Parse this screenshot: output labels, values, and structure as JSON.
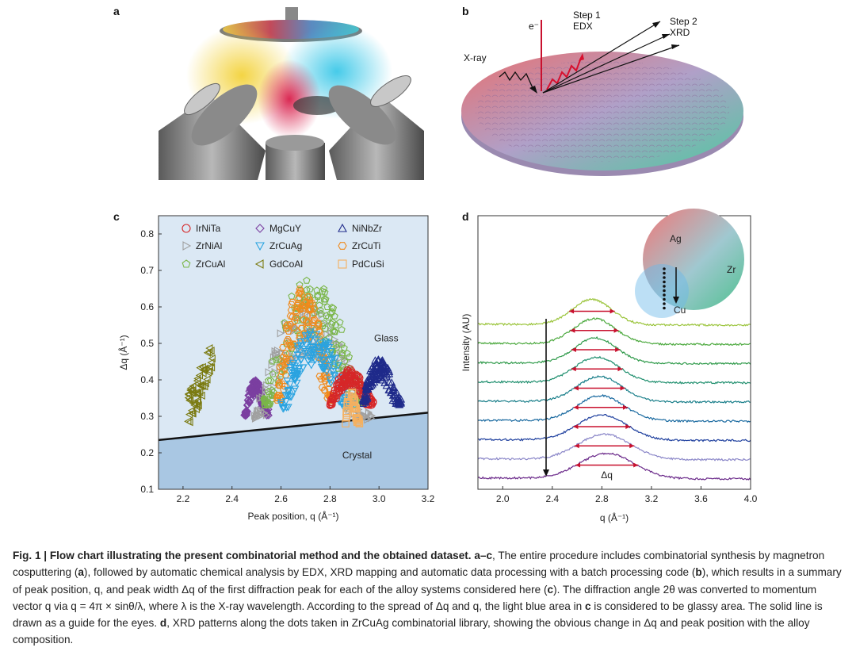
{
  "panels": {
    "a": "a",
    "b": "b",
    "c": "c",
    "d": "d"
  },
  "panel_b": {
    "electron": "e⁻",
    "step1_line1": "Step 1",
    "step1_line2": "EDX",
    "step2_line1": "Step 2",
    "step2_line2": "XRD",
    "xray": "X-ray"
  },
  "colors": {
    "IrNiTa": "#d62728",
    "MgCuY": "#7b3fa0",
    "NiNbZr": "#1f2a8a",
    "ZrNiAl": "#a0a0a0",
    "ZrCuAg": "#2aa3e0",
    "ZrCuTi": "#f08a1c",
    "ZrCuAl": "#7ab648",
    "GdCoAl": "#7a7a10",
    "PdCuSi": "#f5b060",
    "glass_bg": "#dbe8f4",
    "crystal_bg": "#a9c7e3"
  },
  "chart_data": [
    {
      "type": "scatter",
      "title": "",
      "xlabel": "Peak position, q (Å⁻¹)",
      "ylabel": "Δq (Å⁻¹)",
      "xlim": [
        2.1,
        3.2
      ],
      "ylim": [
        0.1,
        0.85
      ],
      "xticks": [
        "2.2",
        "2.4",
        "2.6",
        "2.8",
        "3.0",
        "3.2"
      ],
      "yticks": [
        "0.1",
        "0.2",
        "0.3",
        "0.4",
        "0.5",
        "0.6",
        "0.7",
        "0.8"
      ],
      "region_labels": {
        "glass": "Glass",
        "crystal": "Crystal"
      },
      "boundary_line": {
        "x": [
          2.1,
          3.2
        ],
        "y": [
          0.235,
          0.31
        ]
      },
      "legend": [
        {
          "name": "IrNiTa",
          "marker": "circle"
        },
        {
          "name": "MgCuY",
          "marker": "diamond"
        },
        {
          "name": "NiNbZr",
          "marker": "triangle-up"
        },
        {
          "name": "ZrNiAl",
          "marker": "triangle-right"
        },
        {
          "name": "ZrCuAg",
          "marker": "triangle-down"
        },
        {
          "name": "ZrCuTi",
          "marker": "hexagon"
        },
        {
          "name": "ZrCuAl",
          "marker": "pentagon"
        },
        {
          "name": "GdCoAl",
          "marker": "triangle-left"
        },
        {
          "name": "PdCuSi",
          "marker": "square"
        }
      ],
      "series_regions": [
        {
          "name": "GdCoAl",
          "x": [
            2.22,
            2.32
          ],
          "y_top": [
            0.36,
            0.51
          ],
          "y_bottom": [
            0.25,
            0.43
          ]
        },
        {
          "name": "MgCuY",
          "x": [
            2.45,
            2.55
          ],
          "peak": 0.4,
          "base": 0.3
        },
        {
          "name": "ZrNiAl",
          "x": [
            2.49,
            2.97
          ],
          "peak": 0.61,
          "base": 0.29
        },
        {
          "name": "ZrCuAl",
          "x": [
            2.53,
            2.95
          ],
          "peak": 0.68,
          "base": 0.33
        },
        {
          "name": "ZrCuTi",
          "x": [
            2.58,
            2.82
          ],
          "peak": 0.66,
          "base": 0.34
        },
        {
          "name": "ZrCuAg",
          "x": [
            2.6,
            2.9
          ],
          "peak": 0.54,
          "base": 0.32
        },
        {
          "name": "IrNiTa",
          "x": [
            2.8,
            2.98
          ],
          "peak": 0.43,
          "base": 0.33
        },
        {
          "name": "NiNbZr",
          "x": [
            2.93,
            3.09
          ],
          "peak": 0.46,
          "base": 0.33
        },
        {
          "name": "PdCuSi",
          "x": [
            2.86,
            2.92
          ],
          "peak": 0.37,
          "base": 0.28
        }
      ]
    },
    {
      "type": "line",
      "title": "",
      "xlabel": "q (Å⁻¹)",
      "ylabel": "Intensity (AU)",
      "xlim": [
        1.8,
        4.0
      ],
      "xticks": [
        "2.0",
        "2.4",
        "2.8",
        "3.2",
        "3.6",
        "4.0"
      ],
      "delta_q_label": "Δq",
      "inset": {
        "labels": [
          "Ag",
          "Zr",
          "Cu"
        ]
      },
      "series": [
        {
          "name": "pattern-1",
          "peak_q": 2.72,
          "width": 0.16,
          "color": "#9ac43a"
        },
        {
          "name": "pattern-2",
          "peak_q": 2.74,
          "width": 0.17,
          "color": "#4aa83c"
        },
        {
          "name": "pattern-3",
          "peak_q": 2.75,
          "width": 0.17,
          "color": "#2f9a4a"
        },
        {
          "name": "pattern-4",
          "peak_q": 2.76,
          "width": 0.18,
          "color": "#1f8f6e"
        },
        {
          "name": "pattern-5",
          "peak_q": 2.78,
          "width": 0.18,
          "color": "#1a7f8a"
        },
        {
          "name": "pattern-6",
          "peak_q": 2.79,
          "width": 0.19,
          "color": "#1a6aa0"
        },
        {
          "name": "pattern-7",
          "peak_q": 2.8,
          "width": 0.2,
          "color": "#1e3f9e"
        },
        {
          "name": "pattern-8",
          "peak_q": 2.82,
          "width": 0.21,
          "color": "#8a86c8"
        },
        {
          "name": "pattern-9",
          "peak_q": 2.84,
          "width": 0.22,
          "color": "#6b2a8a"
        }
      ]
    }
  ],
  "caption": {
    "title": "Fig. 1 | Flow chart illustrating the present combinatorial method and the obtained dataset. a–c",
    "p1": ", The entire procedure includes combinatorial synthesis by magnetron cosputtering (",
    "a": "a",
    "p2": "), followed by automatic chemical analysis by EDX, XRD mapping and automatic data processing with a batch processing code (",
    "b": "b",
    "p3": "), which results in a summary of peak position, q, and peak width Δq of the first diffraction peak for each of the alloy systems considered here (",
    "c": "c",
    "p4": "). The diffraction angle 2θ was converted to momentum vector q via q = 4π × sinθ/λ, where λ is the X-ray wavelength. According to the spread of Δq and q, the light blue area in ",
    "c2": "c",
    "p5": " is considered to be glassy area. The solid line is drawn as a guide for the eyes. ",
    "d": "d",
    "p6": ", XRD patterns along the dots taken in ZrCuAg combinatorial library, showing the obvious change in Δq and peak position with the alloy composition."
  }
}
